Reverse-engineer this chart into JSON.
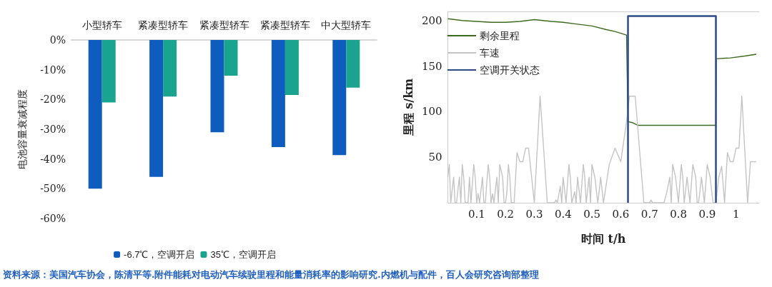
{
  "chart_data": [
    {
      "type": "bar",
      "ylabel": "电池容量衰减程度",
      "categories": [
        "小型轿车",
        "紧凑型轿车",
        "紧凑型轿车",
        "紧凑型轿车",
        "中大型轿车"
      ],
      "series": [
        {
          "name": "-6.7℃，空调开启",
          "color": "#0f5cbf",
          "values": [
            -50,
            -46,
            -31,
            -36,
            -38.7
          ]
        },
        {
          "name": "35℃，空调开启",
          "color": "#1aa38f",
          "values": [
            -21,
            -19,
            -12,
            -18.5,
            -16
          ]
        }
      ],
      "ylim": [
        -60,
        0
      ],
      "yticks": [
        {
          "value": -60,
          "label": "-60%"
        },
        {
          "value": -50,
          "label": "-50%"
        },
        {
          "value": -40,
          "label": "-40%"
        },
        {
          "value": -30,
          "label": "-30%"
        },
        {
          "value": -20,
          "label": "-20%"
        },
        {
          "value": -10,
          "label": "-10%"
        },
        {
          "value": 0,
          "label": "0%"
        }
      ],
      "grid": false,
      "legend": "bottom"
    },
    {
      "type": "line",
      "xlabel": "时间 t/h",
      "ylabel": "里程 s/km",
      "marker": "none",
      "series": [
        {
          "name": "剩余里程",
          "color": "#3d6b1e",
          "x": [
            0,
            0.05,
            0.1,
            0.15,
            0.2,
            0.25,
            0.3,
            0.33,
            0.36,
            0.4,
            0.45,
            0.5,
            0.55,
            0.58,
            0.6,
            0.62,
            0.625,
            0.64,
            0.66,
            0.75,
            0.85,
            0.93,
            0.931,
            0.98,
            1.03,
            1.07
          ],
          "values": [
            202,
            200,
            199,
            198,
            198,
            199,
            201,
            200,
            199,
            198,
            196,
            194,
            190,
            188,
            186,
            184,
            89,
            88,
            85,
            85,
            85,
            85,
            158,
            159,
            161,
            163
          ]
        },
        {
          "name": "车速",
          "color": "#c4c4c4",
          "x": [
            0,
            0.005,
            0.01,
            0.02,
            0.025,
            0.03,
            0.04,
            0.045,
            0.05,
            0.055,
            0.06,
            0.07,
            0.075,
            0.08,
            0.09,
            0.095,
            0.1,
            0.105,
            0.11,
            0.12,
            0.125,
            0.13,
            0.14,
            0.145,
            0.15,
            0.155,
            0.16,
            0.17,
            0.175,
            0.18,
            0.19,
            0.195,
            0.2,
            0.205,
            0.21,
            0.215,
            0.22,
            0.23,
            0.24,
            0.25,
            0.26,
            0.27,
            0.28,
            0.3,
            0.32,
            0.345,
            0.35,
            0.37,
            0.375,
            0.38,
            0.39,
            0.395,
            0.4,
            0.41,
            0.42,
            0.425,
            0.43,
            0.44,
            0.445,
            0.45,
            0.46,
            0.47,
            0.475,
            0.48,
            0.49,
            0.495,
            0.5,
            0.51,
            0.52,
            0.525,
            0.53,
            0.54,
            0.56,
            0.58,
            0.6,
            0.62,
            0.63,
            0.65,
            0.68,
            0.7,
            0.705,
            0.71,
            0.75,
            0.76,
            0.77,
            0.775,
            0.78,
            0.79,
            0.8,
            0.81,
            0.815,
            0.82,
            0.83,
            0.84,
            0.85,
            0.86,
            0.865,
            0.87,
            0.88,
            0.89,
            0.9,
            0.91,
            0.92,
            0.93,
            0.94,
            0.95,
            0.96,
            0.97,
            0.98,
            0.99,
            1,
            1.01,
            1.02,
            1.04,
            1.05,
            1.06,
            1.07
          ],
          "values": [
            28,
            42,
            0,
            28,
            0,
            0,
            28,
            0,
            42,
            28,
            0,
            0,
            28,
            0,
            42,
            28,
            0,
            10,
            0,
            28,
            0,
            0,
            42,
            28,
            0,
            10,
            0,
            28,
            0,
            42,
            28,
            0,
            0,
            12,
            42,
            28,
            0,
            0,
            55,
            45,
            45,
            60,
            60,
            0,
            117,
            0,
            0,
            0,
            3,
            0,
            18,
            0,
            28,
            0,
            42,
            28,
            0,
            12,
            0,
            28,
            0,
            42,
            28,
            0,
            28,
            0,
            42,
            28,
            0,
            12,
            28,
            0,
            42,
            60,
            45,
            89,
            117,
            117,
            0,
            0,
            3,
            0,
            0,
            12,
            28,
            0,
            42,
            28,
            0,
            42,
            28,
            0,
            28,
            0,
            42,
            28,
            0,
            0,
            28,
            0,
            42,
            28,
            0,
            0,
            28,
            40,
            0,
            55,
            45,
            45,
            60,
            60,
            117,
            0,
            45,
            45,
            45
          ]
        },
        {
          "name": "空调开关状态",
          "color": "#2e4a88",
          "x": [
            0.625,
            0.625,
            0.93,
            0.93
          ],
          "values": [
            0,
            205,
            205,
            0
          ]
        }
      ],
      "xlim": [
        0,
        1.08
      ],
      "xticks": [
        0.1,
        0.2,
        0.3,
        0.4,
        0.5,
        0.6,
        0.7,
        0.8,
        0.9,
        1
      ],
      "ylim": [
        0,
        210
      ],
      "yticks": [
        50,
        100,
        150,
        200
      ],
      "grid": false,
      "legend": "top left",
      "annotations": [
        "资料来源：美国汽车协会，陈清平等.附件能耗对电动汽车续驶里程和能量消耗率的影响研究.内燃机与配件，百人会研究咨询部整理"
      ]
    }
  ]
}
